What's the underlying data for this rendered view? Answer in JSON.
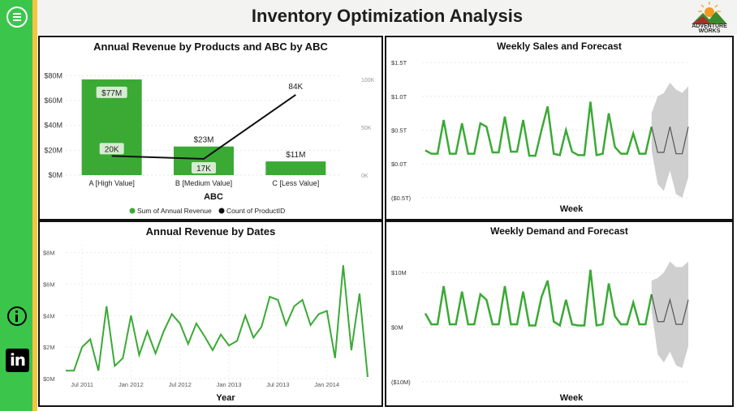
{
  "header": {
    "title": "Inventory Optimization Analysis",
    "logo_line1": "ADVENTURE",
    "logo_line2": "WORKS"
  },
  "colors": {
    "sidebar": "#3cc54b",
    "accent": "#f4c542",
    "series_green": "#3aaa35",
    "forecast_band": "#cfcfcf"
  },
  "icons": {
    "menu": "hamburger-circle-icon",
    "info": "info-icon",
    "linkedin": "linkedin-icon"
  },
  "chart_data": [
    {
      "type": "bar",
      "title": "Annual Revenue by Products and ABC by ABC",
      "xlabel": "ABC",
      "categories": [
        "A [High Value]",
        "B [Medium Value]",
        "C [Less Value]"
      ],
      "series": [
        {
          "name": "Sum of Annual Revenue",
          "values": [
            77,
            23,
            11
          ],
          "data_labels": [
            "$77M",
            "$23M",
            "$11M"
          ]
        },
        {
          "name": "Count of ProductID",
          "values": [
            20,
            17,
            84
          ],
          "data_labels": [
            "20K",
            "17K",
            "84K"
          ]
        }
      ],
      "y_ticks": [
        "$0M",
        "$20M",
        "$40M",
        "$60M",
        "$80M"
      ],
      "ylim": [
        0,
        90
      ],
      "y2_ticks": [
        "0K",
        "50K",
        "100K"
      ],
      "y2lim": [
        0,
        117
      ],
      "legend": "bottom-center"
    },
    {
      "type": "line",
      "title": "Weekly Sales and Forecast",
      "xlabel": "Week",
      "y_ticks": [
        "($0.5T)",
        "$0.0T",
        "$0.5T",
        "$1.0T",
        "$1.5T"
      ],
      "ylim": [
        -0.55,
        1.55
      ],
      "actual": [
        0.2,
        0.15,
        0.15,
        0.65,
        0.15,
        0.15,
        0.6,
        0.15,
        0.15,
        0.6,
        0.55,
        0.17,
        0.17,
        0.7,
        0.18,
        0.18,
        0.65,
        0.12,
        0.12,
        0.5,
        0.85,
        0.15,
        0.13,
        0.5,
        0.18,
        0.13,
        0.13,
        0.92,
        0.13,
        0.15,
        0.75,
        0.25,
        0.15,
        0.15,
        0.45,
        0.15,
        0.15,
        0.55
      ],
      "forecast": [
        0.55,
        0.17,
        0.17,
        0.55,
        0.15,
        0.15,
        0.55
      ],
      "forecast_upper": [
        0.75,
        1.0,
        1.05,
        1.2,
        1.1,
        1.05,
        1.15
      ],
      "forecast_lower": [
        0.2,
        -0.3,
        -0.4,
        -0.1,
        -0.45,
        -0.5,
        -0.2
      ],
      "grid": true
    },
    {
      "type": "line",
      "title": "Annual Revenue by Dates",
      "xlabel": "Year",
      "x_ticks": [
        "Jul 2011",
        "Jan 2012",
        "Jul 2012",
        "Jan 2013",
        "Jul 2013",
        "Jan 2014"
      ],
      "y_ticks": [
        "$0M",
        "$2M",
        "$4M",
        "$6M",
        "$8M"
      ],
      "ylim": [
        0,
        8.5
      ],
      "values": [
        0.5,
        0.5,
        2.0,
        2.5,
        0.5,
        4.6,
        0.8,
        1.3,
        4.0,
        1.5,
        3.0,
        1.6,
        3.0,
        4.1,
        3.5,
        2.2,
        3.5,
        2.7,
        1.8,
        2.8,
        2.1,
        2.4,
        4.0,
        2.6,
        3.3,
        5.2,
        5.0,
        3.4,
        4.6,
        5.0,
        3.4,
        4.1,
        4.3,
        1.3,
        7.2,
        1.8,
        5.4,
        0.1
      ],
      "grid": true
    },
    {
      "type": "line",
      "title": "Weekly Demand and Forecast",
      "xlabel": "Week",
      "y_ticks": [
        "($10M)",
        "$0M",
        "$10M"
      ],
      "ylim": [
        -11.5,
        15.5
      ],
      "actual": [
        2.5,
        0.5,
        0.5,
        7.5,
        0.5,
        0.5,
        6.5,
        0.5,
        0.5,
        6.0,
        5.0,
        0.5,
        0.5,
        7.5,
        0.5,
        0.5,
        6.5,
        0.3,
        0.3,
        5.5,
        8.5,
        1.0,
        0.3,
        5.0,
        0.5,
        0.3,
        0.3,
        10.5,
        0.3,
        0.5,
        8.0,
        2.0,
        0.5,
        0.5,
        4.5,
        0.5,
        0.5,
        6.0
      ],
      "forecast": [
        6.0,
        1.0,
        1.0,
        5.0,
        0.5,
        0.5,
        5.0
      ],
      "forecast_upper": [
        8.5,
        9.0,
        10.0,
        12.0,
        11.0,
        11.0,
        12.0
      ],
      "forecast_lower": [
        3.0,
        -5.0,
        -6.5,
        -4.5,
        -7.0,
        -7.5,
        -3.5
      ],
      "grid": true
    }
  ]
}
